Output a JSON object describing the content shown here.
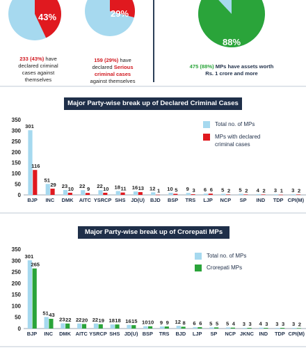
{
  "top_stats": {
    "pie1": {
      "percent_label": "43%",
      "percent": 43,
      "count_label": "233 (43%)",
      "text_a": " have",
      "text_b": "declared criminal",
      "text_c": "cases against",
      "text_d": "themselves"
    },
    "pie2": {
      "percent_label": "29%",
      "percent": 29,
      "count_label": "159 (29%)",
      "text_a": " have",
      "text_b": "declared ",
      "text_b_bold": "Serious",
      "text_c": "criminal cases",
      "text_d": "against themselves"
    },
    "pie3": {
      "percent_label": "88%",
      "percent": 88,
      "count_label": "475 (88%)",
      "text_a": " MPs have assets worth",
      "text_b": "Rs. 1 crore and more"
    }
  },
  "colors": {
    "total": "#a6d9ef",
    "criminal": "#e0191f",
    "crorepati": "#2aa43a",
    "pie_bg": "#a6d9ef",
    "title_bg": "#1f2f49"
  },
  "chart_data": [
    {
      "type": "bar",
      "title": "Major Party-wise break up of Declared Criminal Cases",
      "categories": [
        "BJP",
        "INC",
        "DMK",
        "AITC",
        "YSRCP",
        "SHS",
        "JD(U)",
        "BJD",
        "BSP",
        "TRS",
        "LJP",
        "NCP",
        "SP",
        "IND",
        "TDP",
        "CPI(M)"
      ],
      "series": [
        {
          "name": "Total no. of MPs",
          "values": [
            301,
            51,
            23,
            22,
            22,
            18,
            16,
            12,
            10,
            9,
            6,
            5,
            5,
            4,
            3,
            3
          ]
        },
        {
          "name": "MPs with declared criminal cases",
          "values": [
            116,
            29,
            10,
            9,
            10,
            11,
            13,
            1,
            5,
            3,
            6,
            2,
            2,
            2,
            1,
            2
          ]
        }
      ],
      "yticks": [
        "0",
        "50",
        "100",
        "150",
        "200",
        "250",
        "300",
        "350"
      ],
      "ylim": [
        0,
        350
      ],
      "legend": [
        "Total no. of MPs",
        "MPs with declared",
        "criminal cases"
      ],
      "legend_position": "top-right"
    },
    {
      "type": "bar",
      "title": "Major Party-wise break up of Crorepati MPs",
      "categories": [
        "BJP",
        "INC",
        "DMK",
        "AITC",
        "YSRCP",
        "SHS",
        "JD(U)",
        "BSP",
        "TRS",
        "BJD",
        "LJP",
        "SP",
        "NCP",
        "JKNC",
        "IND",
        "TDP",
        "CPI(M)"
      ],
      "series": [
        {
          "name": "Total no. of MPs",
          "values": [
            301,
            51,
            23,
            22,
            22,
            18,
            16,
            10,
            9,
            12,
            6,
            5,
            5,
            3,
            4,
            3,
            3
          ]
        },
        {
          "name": "Crorepati MPs",
          "values": [
            265,
            43,
            22,
            20,
            19,
            18,
            15,
            10,
            9,
            8,
            6,
            5,
            4,
            3,
            3,
            3,
            2
          ]
        }
      ],
      "yticks": [
        "0",
        "50",
        "100",
        "150",
        "200",
        "250",
        "300",
        "350"
      ],
      "ylim": [
        0,
        350
      ],
      "legend": [
        "Total no. of MPs",
        "Crorepati MPs"
      ],
      "legend_position": "top-right"
    }
  ]
}
